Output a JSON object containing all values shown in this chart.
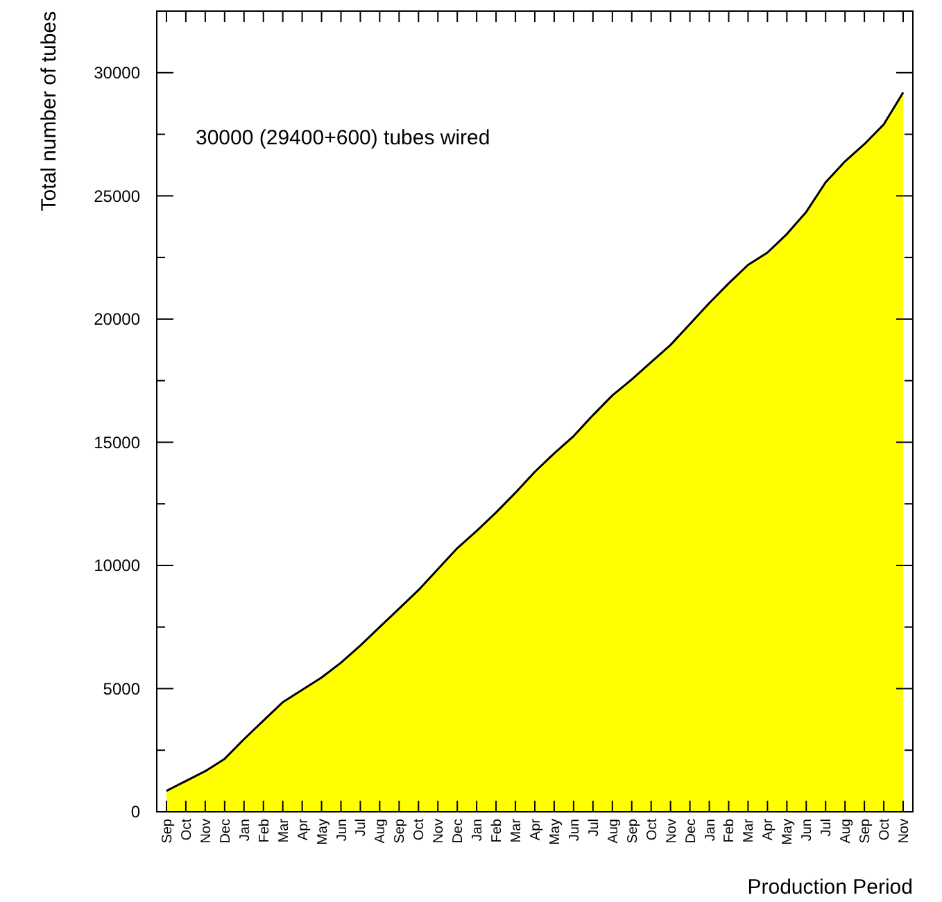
{
  "chart_data": {
    "type": "area",
    "xlabel": "Production Period",
    "ylabel": "Total number of tubes",
    "annotations": [
      "30000 (29400+600) tubes wired"
    ],
    "categories": [
      "Sep",
      "Oct",
      "Nov",
      "Dec",
      "Jan",
      "Feb",
      "Mar",
      "Apr",
      "May",
      "Jun",
      "Jul",
      "Aug",
      "Sep",
      "Oct",
      "Nov",
      "Dec",
      "Jan",
      "Feb",
      "Mar",
      "Apr",
      "May",
      "Jun",
      "Jul",
      "Aug",
      "Sep",
      "Oct",
      "Nov",
      "Dec",
      "Jan",
      "Feb",
      "Mar",
      "Apr",
      "May",
      "Jun",
      "Jul",
      "Aug",
      "Sep",
      "Oct",
      "Nov"
    ],
    "values": [
      850,
      1250,
      1650,
      2150,
      2950,
      3700,
      4450,
      4950,
      5450,
      6050,
      6750,
      7500,
      8250,
      9000,
      9850,
      10700,
      11400,
      12150,
      12950,
      13800,
      14550,
      15250,
      16100,
      16900,
      17550,
      18250,
      18950,
      19800,
      20650,
      21450,
      22200,
      22700,
      23450,
      24350,
      25550,
      26400,
      27100,
      27900,
      29200
    ],
    "color": "#ffff00",
    "ylim": [
      0,
      32500
    ],
    "yticks": [
      0,
      {
        "value": 2500,
        "label": null
      },
      5000,
      {
        "value": 7500,
        "label": null
      },
      10000,
      {
        "value": 12500,
        "label": null
      },
      15000,
      {
        "value": 17500,
        "label": null
      },
      20000,
      {
        "value": 22500,
        "label": null
      },
      25000,
      {
        "value": 27500,
        "label": null
      },
      30000,
      {
        "value": 32500,
        "label": null
      }
    ]
  }
}
